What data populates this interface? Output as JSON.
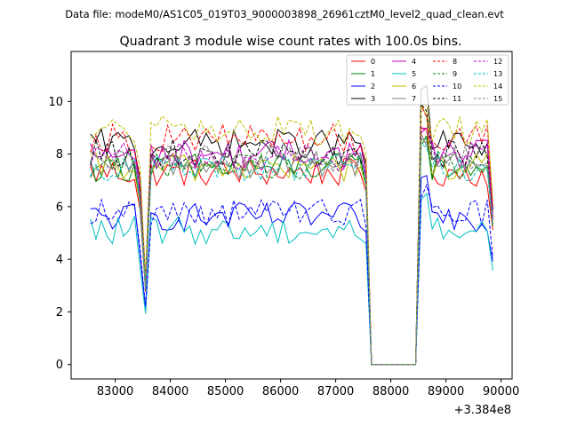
{
  "chart_data": {
    "type": "line",
    "suptitle": "Data file: modeM0/AS1C05_019T03_9000003898_26961cztM0_level2_quad_clean.evt",
    "title": "Quadrant 3 module wise count rates with 100.0s bins.",
    "xlabel": "",
    "ylabel": "",
    "x_offset_label": "+3.384e8",
    "xlim": [
      82200,
      90200
    ],
    "ylim": [
      -0.55,
      11.9
    ],
    "x_ticks": [
      83000,
      84000,
      85000,
      86000,
      87000,
      88000,
      89000,
      90000
    ],
    "x_tick_labels": [
      "83000",
      "84000",
      "85000",
      "86000",
      "87000",
      "88000",
      "89000",
      "90000"
    ],
    "y_ticks": [
      0,
      2,
      4,
      6,
      8,
      10
    ],
    "y_tick_labels": [
      "0",
      "2",
      "4",
      "6",
      "8",
      "10"
    ],
    "legend_position": "top-right",
    "time_grid": {
      "start": 82550,
      "step": 100,
      "points": 74
    },
    "flare_times": [
      83550,
      88450
    ],
    "gap": {
      "from": 87650,
      "to": 88350,
      "value": 0
    },
    "series": [
      {
        "name": "0",
        "color": "#ff0000",
        "dash": "solid",
        "level": 7.3,
        "flare_peak": 8.6
      },
      {
        "name": "1",
        "color": "#008000",
        "dash": "solid",
        "level": 7.5,
        "flare_peak": 8.3
      },
      {
        "name": "2",
        "color": "#0000ff",
        "dash": "solid",
        "level": 5.6,
        "flare_peak": 7.0
      },
      {
        "name": "3",
        "color": "#000000",
        "dash": "solid",
        "level": 8.4,
        "flare_peak": 10.5
      },
      {
        "name": "4",
        "color": "#bf00bf",
        "dash": "solid",
        "level": 8.0,
        "flare_peak": 9.0
      },
      {
        "name": "5",
        "color": "#00bfbf",
        "dash": "solid",
        "level": 5.1,
        "flare_peak": 6.6
      },
      {
        "name": "6",
        "color": "#bfbf00",
        "dash": "solid",
        "level": 7.5,
        "flare_peak": 9.6
      },
      {
        "name": "7",
        "color": "#808080",
        "dash": "solid",
        "level": 7.6,
        "flare_peak": 8.6
      },
      {
        "name": "8",
        "color": "#ff0000",
        "dash": "dashed",
        "level": 8.6,
        "flare_peak": 9.8
      },
      {
        "name": "9",
        "color": "#008000",
        "dash": "dashed",
        "level": 7.6,
        "flare_peak": 8.4
      },
      {
        "name": "10",
        "color": "#0000ff",
        "dash": "dashed",
        "level": 5.8,
        "flare_peak": 6.6
      },
      {
        "name": "11",
        "color": "#000000",
        "dash": "dashed",
        "level": 8.0,
        "flare_peak": 9.5
      },
      {
        "name": "12",
        "color": "#bf00bf",
        "dash": "dashed",
        "level": 7.9,
        "flare_peak": 8.8
      },
      {
        "name": "13",
        "color": "#00bfbf",
        "dash": "dashed",
        "level": 7.5,
        "flare_peak": 8.3
      },
      {
        "name": "14",
        "color": "#bfbf00",
        "dash": "dashed",
        "level": 8.9,
        "flare_peak": 10.0
      },
      {
        "name": "15",
        "color": "#808080",
        "dash": "dashed",
        "level": 7.8,
        "flare_peak": 8.7
      }
    ]
  }
}
